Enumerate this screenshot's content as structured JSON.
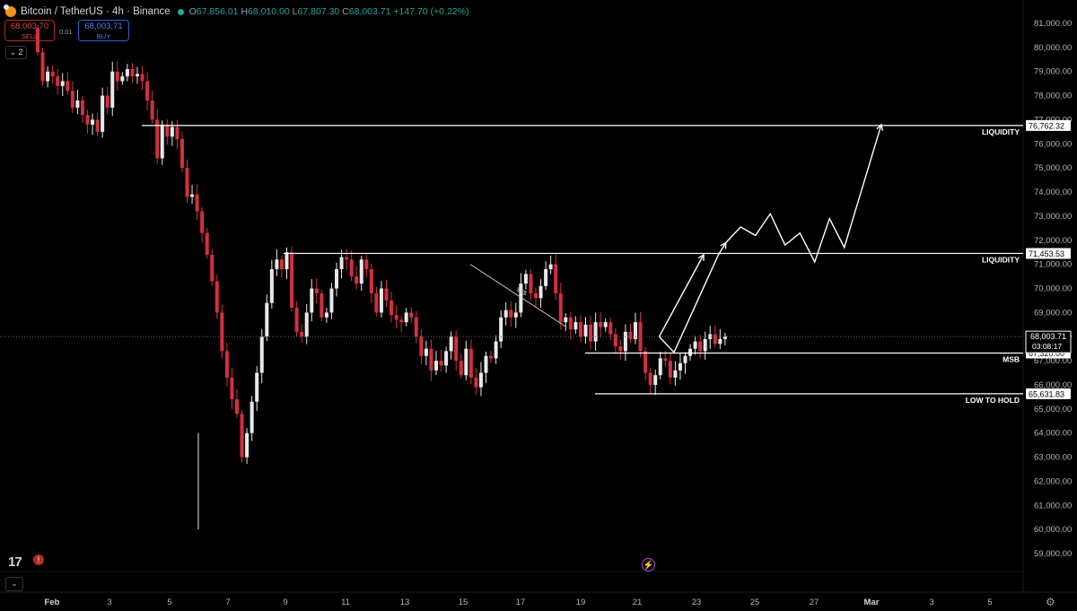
{
  "header": {
    "title": "Bitcoin / TetherUS · 4h · Binance",
    "open_label": "O",
    "open": "67,856.01",
    "high_label": "H",
    "high": "68,010.00",
    "low_label": "L",
    "low": "67,807.30",
    "close_label": "C",
    "close": "68,003.71",
    "change": "+147.70 (+0.22%)"
  },
  "trade": {
    "sell_price": "68,003.70",
    "sell_label": "SELL",
    "spread": "0.01",
    "buy_price": "68,003.71",
    "buy_label": "BUY"
  },
  "indicator_count": "2",
  "colors": {
    "up": "#e8e8e8",
    "down": "#d32f3f",
    "background": "#000000",
    "lines": "#ffffff",
    "accent": "#26a69a"
  },
  "icons": {
    "logo": "tradingview-logo-icon",
    "alert": "alert-icon",
    "replay": "flash-icon",
    "settings": "gear-icon"
  },
  "chart_data": {
    "type": "candlestick",
    "symbol": "Bitcoin / TetherUS",
    "timeframe": "4h",
    "exchange": "Binance",
    "ylim": [
      58700,
      81200
    ],
    "y_ticks": [
      59000,
      60000,
      61000,
      62000,
      63000,
      64000,
      65000,
      66000,
      67000,
      68000,
      69000,
      70000,
      71000,
      72000,
      73000,
      74000,
      75000,
      76000,
      77000,
      78000,
      79000,
      80000,
      81000
    ],
    "x_ticks": [
      "Feb",
      "3",
      "5",
      "7",
      "9",
      "11",
      "13",
      "15",
      "17",
      "19",
      "21",
      "23",
      "25",
      "27",
      "Mar",
      "3",
      "5"
    ],
    "closes": [
      79800,
      78600,
      79000,
      78800,
      78400,
      78600,
      78200,
      77500,
      77800,
      77200,
      76800,
      77000,
      76500,
      78000,
      77500,
      79000,
      78600,
      78800,
      79100,
      78800,
      78900,
      78600,
      77800,
      77000,
      75400,
      76800,
      76300,
      76700,
      76200,
      75000,
      73800,
      73900,
      73200,
      72300,
      71400,
      70300,
      69000,
      67400,
      66300,
      65400,
      64800,
      63000,
      64000,
      65300,
      66500,
      68000,
      69400,
      70800,
      71200,
      70800,
      71500,
      69200,
      68200,
      68000,
      69000,
      70000,
      69800,
      68800,
      69000,
      70000,
      70800,
      71300,
      71200,
      70500,
      70200,
      71200,
      70800,
      69800,
      69000,
      70000,
      69500,
      68900,
      68700,
      68600,
      69000,
      68800,
      68000,
      67200,
      67500,
      66600,
      67000,
      66800,
      67400,
      68000,
      67000,
      66400,
      67500,
      66300,
      65900,
      66500,
      67200,
      67100,
      67800,
      68800,
      69100,
      68800,
      69000,
      70200,
      70600,
      69800,
      69600,
      70100,
      70800,
      71000,
      69800,
      68600,
      68800,
      68300,
      68600,
      68000,
      68500,
      67800,
      68600,
      68400,
      68600,
      68100,
      67600,
      67400,
      68200,
      67900,
      68600,
      67400,
      66500,
      66000,
      66400,
      67100,
      67000,
      66300,
      66600,
      66900,
      67200,
      67500,
      67800,
      67400,
      67900,
      68100,
      67700,
      67900,
      68004
    ],
    "levels": [
      {
        "label": "LIQUIDITY",
        "price": "76,762.32",
        "value": 76762.32
      },
      {
        "label": "LIQUIDITY",
        "price": "71,453.53",
        "value": 71453.53
      },
      {
        "label": "MSB",
        "price": "67,320.00",
        "value": 67320.0
      },
      {
        "label": "LOW TO HOLD",
        "price": "65,631.83",
        "value": 65631.83
      }
    ],
    "current_price": "68,003.71",
    "current_value": 68003.71,
    "countdown": "03:08:17",
    "annotation_text": "$$$",
    "projection_path": [
      {
        "date": "Feb 21 12:00",
        "value": 68000
      },
      {
        "date": "Feb 22 00:00",
        "value": 67350
      },
      {
        "date": "Feb 23 12:00",
        "value": 71400
      },
      {
        "date": "Feb 23 18:00",
        "value": 71900
      },
      {
        "date": "Feb 24 06:00",
        "value": 72550
      },
      {
        "date": "Feb 24 18:00",
        "value": 72200
      },
      {
        "date": "Feb 25 06:00",
        "value": 73100
      },
      {
        "date": "Feb 25 18:00",
        "value": 71800
      },
      {
        "date": "Feb 26 06:00",
        "value": 72300
      },
      {
        "date": "Feb 26 18:00",
        "value": 71100
      },
      {
        "date": "Feb 27 06:00",
        "value": 72900
      },
      {
        "date": "Feb 27 18:00",
        "value": 71700
      },
      {
        "date": "Mar 1 00:00",
        "value": 76800
      }
    ]
  }
}
